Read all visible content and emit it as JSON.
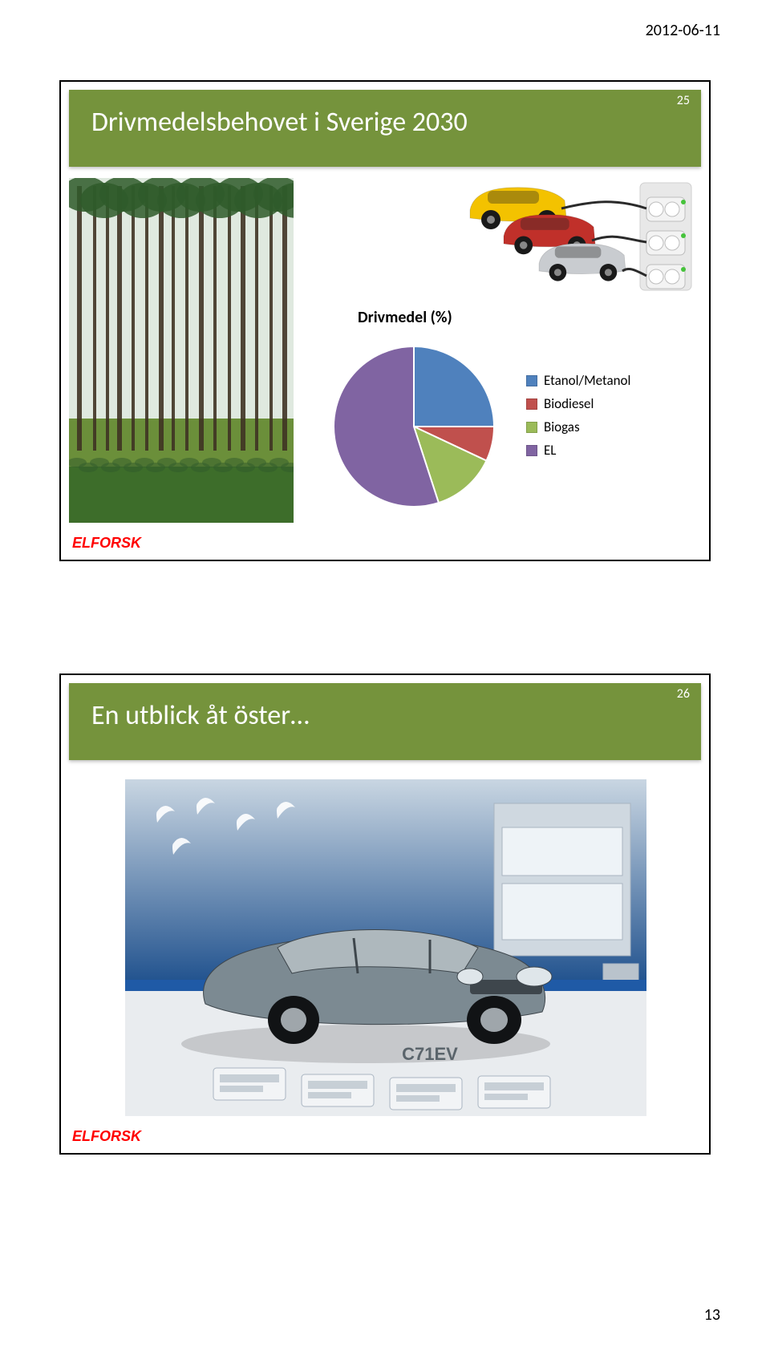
{
  "header_date": "2012-06-11",
  "footer_page": "13",
  "slide1": {
    "title": "Drivmedelsbehovet i Sverige  2030",
    "number": "25",
    "elforsk": "ELFORSK",
    "pie_title": "Drivmedel (%)",
    "pie": {
      "type": "pie",
      "start_angle_deg": -90,
      "slices": [
        {
          "label": "Etanol/Metanol",
          "value": 25,
          "color": "#4f81bd"
        },
        {
          "label": "Biodiesel",
          "value": 7,
          "color": "#c0504d"
        },
        {
          "label": "Biogas",
          "value": 13,
          "color": "#9bbb59"
        },
        {
          "label": "EL",
          "value": 55,
          "color": "#8064a2"
        }
      ],
      "outline_color": "#ffffff",
      "outline_width": 2
    },
    "legend_items": [
      {
        "label": "Etanol/Metanol",
        "color": "#4f81bd"
      },
      {
        "label": "Biodiesel",
        "color": "#c0504d"
      },
      {
        "label": "Biogas",
        "color": "#9bbb59"
      },
      {
        "label": "EL",
        "color": "#8064a2"
      }
    ],
    "forest_colors": {
      "sky": "#dfe9df",
      "canopy": "#2f5a2a",
      "trunk": "#3f3324",
      "ground_far": "#6b8f3a",
      "ground_near": "#3d6d2a"
    },
    "charger_colors": {
      "bg": "#ffffff",
      "outlet_panel": "#e8e8e8",
      "outlet_ring": "#bdbdbd",
      "car_yellow": "#f3c200",
      "car_red": "#c0302a",
      "car_silver": "#c9ccd0",
      "tire": "#1a1a1a",
      "cord": "#2a2a2a"
    }
  },
  "slide2": {
    "title": "En utblick åt öster…",
    "number": "26",
    "elforsk": "ELFORSK",
    "showroom_colors": {
      "wall_top": "#c9d6e2",
      "wall_bottom": "#1d4f8c",
      "stage": "#e9ecef",
      "stage_edge": "#1f5aa6",
      "car_body": "#7c8a92",
      "car_dark": "#3e464c",
      "window": "#aeb8bd",
      "tire": "#111315",
      "rim": "#9fa6ab",
      "headlight": "#dfe6ea",
      "bird": "#ffffff",
      "badge_text": "C71EV",
      "panel": "#cfd8e0",
      "panel_border": "#a9b5c1"
    }
  }
}
